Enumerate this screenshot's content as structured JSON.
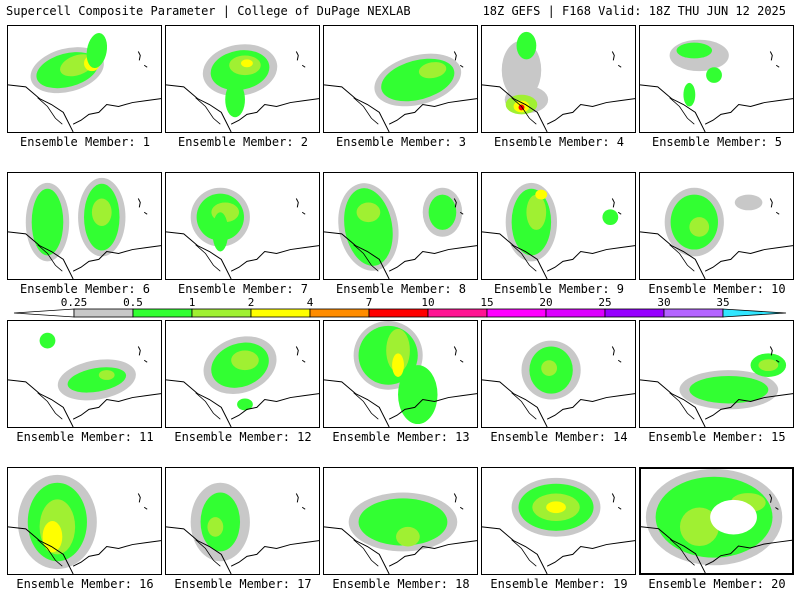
{
  "header": {
    "title": "Supercell Composite Parameter | College of DuPage NEXLAB",
    "run_info": "18Z GEFS | F168 Valid: 18Z THU JUN 12 2025"
  },
  "legend": {
    "ticks": [
      "0.25",
      "0.5",
      "1",
      "2",
      "4",
      "7",
      "10",
      "15",
      "20",
      "25",
      "30",
      "35"
    ],
    "colors": [
      "#ffffff",
      "#c8c8c8",
      "#32ff32",
      "#a0f032",
      "#ffff00",
      "#ff8c00",
      "#ff0000",
      "#ff1493",
      "#ff00ff",
      "#dc00ff",
      "#9600ff",
      "#b464ff",
      "#32e6ff"
    ]
  },
  "members": [
    {
      "label": "Ensemble Member: 1"
    },
    {
      "label": "Ensemble Member: 2"
    },
    {
      "label": "Ensemble Member: 3"
    },
    {
      "label": "Ensemble Member: 4"
    },
    {
      "label": "Ensemble Member: 5"
    },
    {
      "label": "Ensemble Member: 6"
    },
    {
      "label": "Ensemble Member: 7"
    },
    {
      "label": "Ensemble Member: 8"
    },
    {
      "label": "Ensemble Member: 9"
    },
    {
      "label": "Ensemble Member: 10"
    },
    {
      "label": "Ensemble Member: 11"
    },
    {
      "label": "Ensemble Member: 12"
    },
    {
      "label": "Ensemble Member: 13"
    },
    {
      "label": "Ensemble Member: 14"
    },
    {
      "label": "Ensemble Member: 15"
    },
    {
      "label": "Ensemble Member: 16"
    },
    {
      "label": "Ensemble Member: 17"
    },
    {
      "label": "Ensemble Member: 18"
    },
    {
      "label": "Ensemble Member: 19"
    },
    {
      "label": "Ensemble Member: 20",
      "selected": true
    }
  ]
}
